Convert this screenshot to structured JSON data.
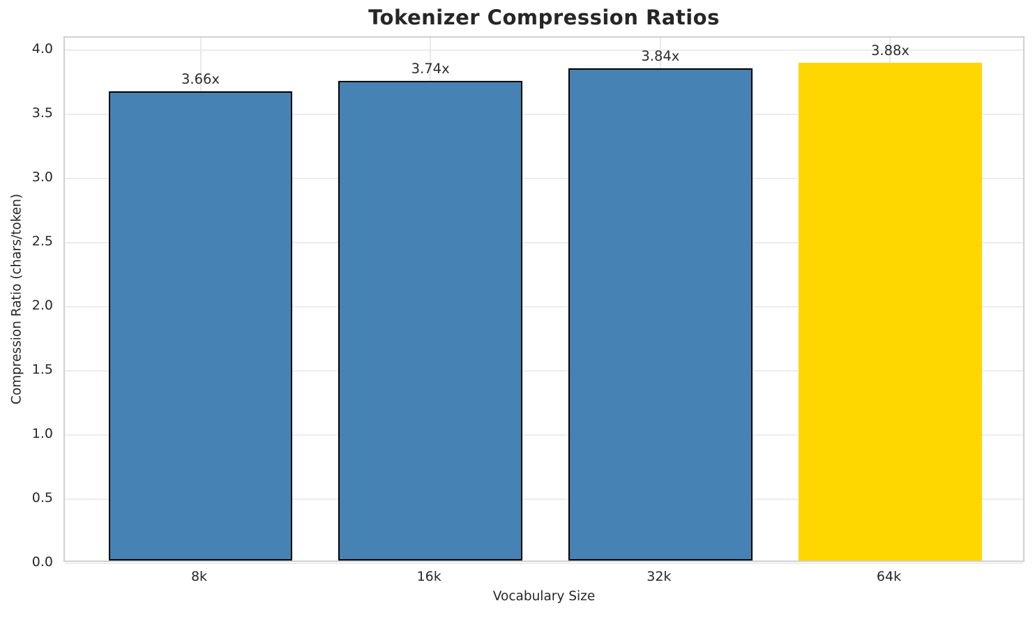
{
  "chart_data": {
    "type": "bar",
    "title": "Tokenizer Compression Ratios",
    "xlabel": "Vocabulary Size",
    "ylabel": "Compression Ratio (chars/token)",
    "categories": [
      "8k",
      "16k",
      "32k",
      "64k"
    ],
    "values": [
      3.66,
      3.74,
      3.84,
      3.88
    ],
    "bar_labels": [
      "3.66x",
      "3.74x",
      "3.84x",
      "3.88x"
    ],
    "bar_colors": [
      "#4682B4",
      "#4682B4",
      "#4682B4",
      "#FFD700"
    ],
    "bar_edge_colors": [
      "#000000",
      "#000000",
      "#000000",
      "#FFD700"
    ],
    "highlighted_category": "64k",
    "yticks": [
      0,
      0.5,
      1,
      1.5,
      2,
      2.5,
      3,
      3.5,
      4
    ],
    "ytick_labels": [
      "0.0",
      "0.5",
      "1.0",
      "1.5",
      "2.0",
      "2.5",
      "3.0",
      "3.5",
      "4.0"
    ],
    "ylim": [
      0,
      4.1
    ],
    "xlim": [
      -0.59,
      3.59
    ],
    "bar_width": 0.8,
    "grid": true,
    "legend": false,
    "colors": {
      "bar_default": "#4682B4",
      "bar_highlight": "#FFD700",
      "bar_edge": "#000000",
      "text": "#262626",
      "grid": "#ececec",
      "spine": "#d0d0d0",
      "background": "#ffffff"
    }
  }
}
